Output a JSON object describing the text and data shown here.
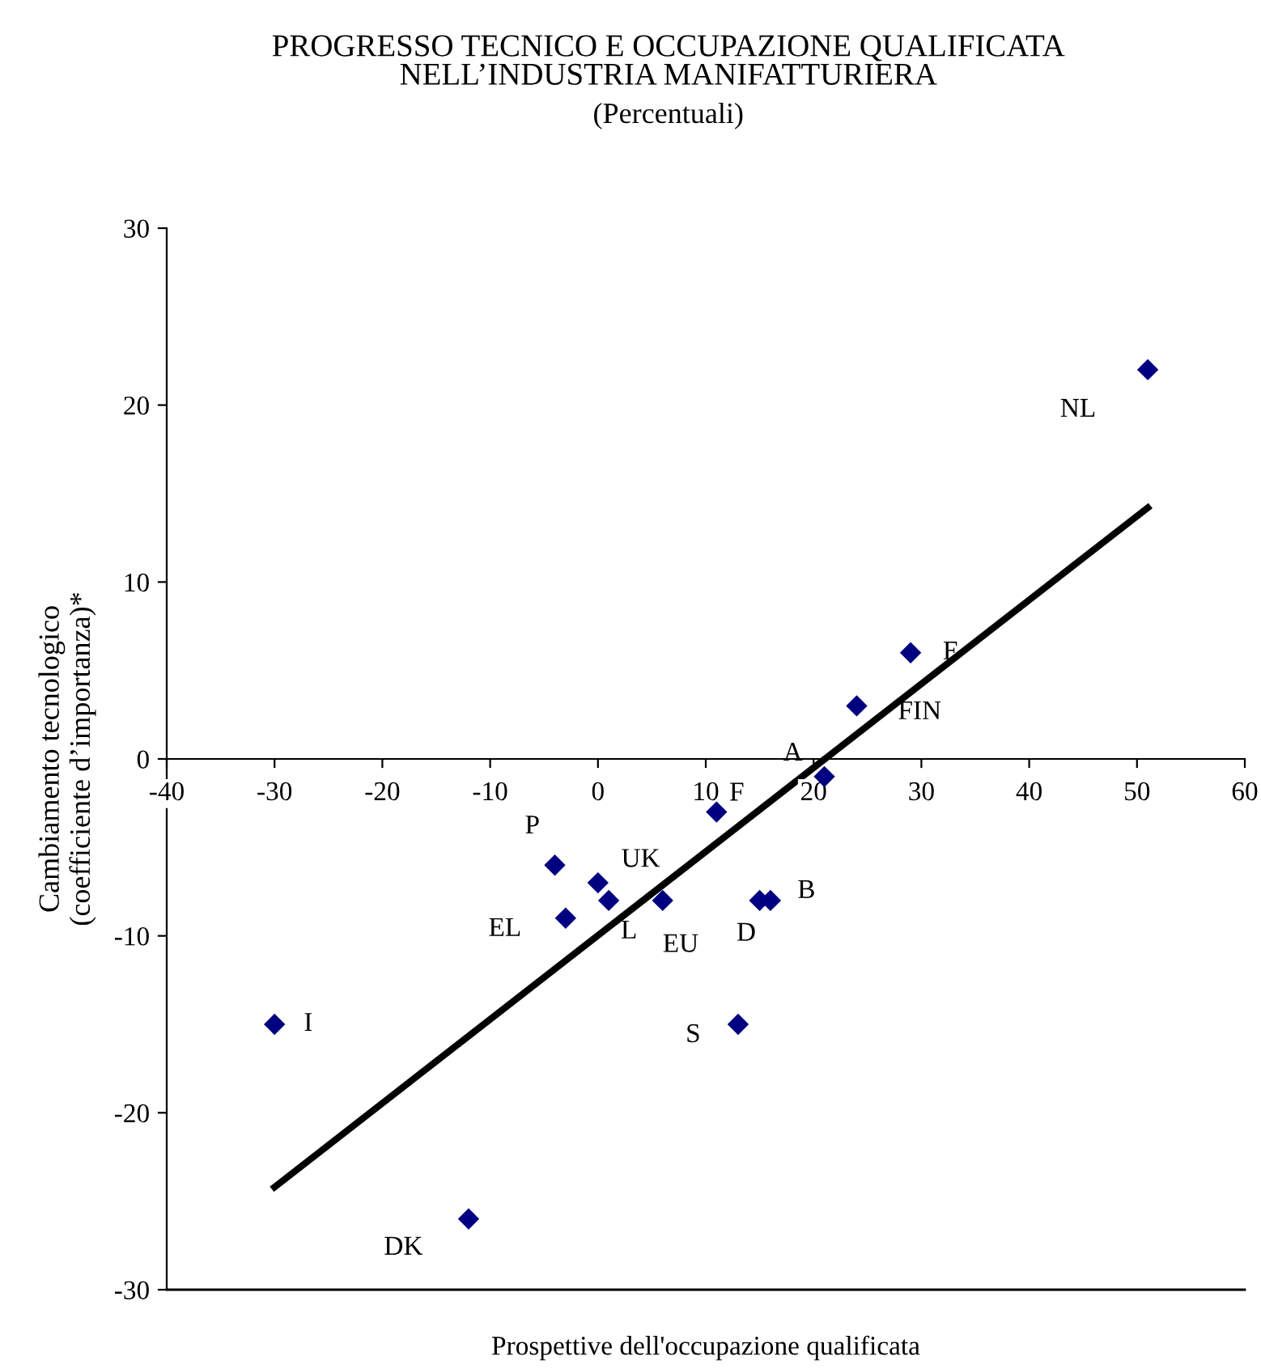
{
  "chart_data": {
    "type": "scatter",
    "title": "PROGRESSO TECNICO E OCCUPAZIONE QUALIFICATA\nNELL’INDUSTRIA MANIFATTURIERA",
    "subtitle": "(Percentuali)",
    "xlabel": "Prospettive dell'occupazione qualificata",
    "ylabel": "Cambiamento tecnologico\n(coefficiente d’importanza)*",
    "xlim": [
      -40,
      60
    ],
    "xticks": [
      -40,
      -30,
      -20,
      -10,
      0,
      10,
      20,
      30,
      40,
      50,
      60
    ],
    "ylim": [
      -30,
      30
    ],
    "yticks": [
      -30,
      -20,
      -10,
      0,
      10,
      20,
      30
    ],
    "grid": false,
    "legend": false,
    "marker": "diamond",
    "series": [
      {
        "color": "#000080",
        "x": [
          51,
          29,
          24,
          21,
          11,
          -4,
          0,
          1,
          6,
          -3,
          15,
          16,
          13,
          -30,
          -12
        ],
        "values": [
          22,
          6,
          3,
          -1,
          -3,
          -6,
          -7,
          -8,
          -8,
          -9,
          -8,
          -8,
          -15,
          -15,
          -26
        ]
      },
      {
        "type": "line",
        "color": "#000000",
        "x": [
          -30,
          51
        ],
        "values": [
          -24.2,
          14.2
        ],
        "marker": "none",
        "line_style": "solid"
      }
    ],
    "annotations": [
      {
        "text": "NL",
        "x": 51,
        "y": 22
      },
      {
        "text": "E",
        "x": 29,
        "y": 6
      },
      {
        "text": "FIN",
        "x": 24,
        "y": 3
      },
      {
        "text": "A",
        "x": 21,
        "y": -1
      },
      {
        "text": "F",
        "x": 11,
        "y": -3
      },
      {
        "text": "P",
        "x": -4,
        "y": -6
      },
      {
        "text": "UK",
        "x": 0,
        "y": -7
      },
      {
        "text": "L",
        "x": 1,
        "y": -8
      },
      {
        "text": "EU",
        "x": 6,
        "y": -8
      },
      {
        "text": "EL",
        "x": -3,
        "y": -9
      },
      {
        "text": "D",
        "x": 15,
        "y": -8
      },
      {
        "text": "B",
        "x": 16,
        "y": -8
      },
      {
        "text": "S",
        "x": 13,
        "y": -15
      },
      {
        "text": "I",
        "x": -30,
        "y": -15
      },
      {
        "text": "DK",
        "x": -12,
        "y": -26
      }
    ]
  }
}
